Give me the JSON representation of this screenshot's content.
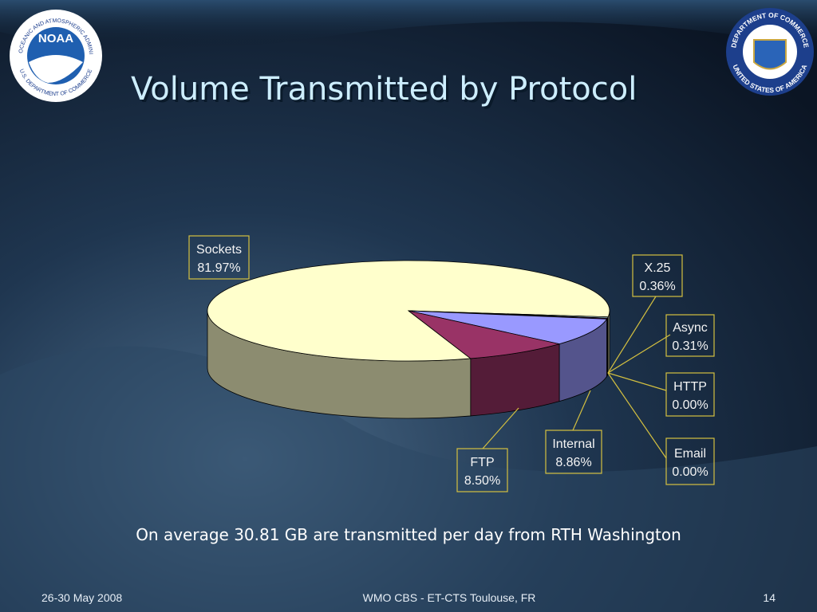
{
  "chart_data": {
    "type": "pie",
    "title": "Volume Transmitted by Protocol",
    "categories": [
      "Sockets",
      "X.25",
      "Async",
      "HTTP",
      "Email",
      "Internal",
      "FTP"
    ],
    "values": [
      81.97,
      0.36,
      0.31,
      0,
      0,
      8.86,
      8.5
    ],
    "value_labels": [
      "81.97%",
      "0.36%",
      "0.31%",
      "0.00%",
      "0.00%",
      "8.86%",
      "8.50%"
    ],
    "colors": [
      "#ffffcc",
      "#ccffff",
      "#660066",
      "#ff8080",
      "#0066cc",
      "#9999ff",
      "#993366"
    ]
  },
  "slide": {
    "caption": "On average 30.81 GB are transmitted per day from RTH Washington",
    "footer_left": "26-30 May 2008",
    "footer_center": "WMO CBS - ET-CTS Toulouse, FR",
    "page_number": 14
  },
  "logos": {
    "noaa": {
      "name": "NOAA",
      "ring_top": "NATIONAL OCEANIC AND ATMOSPHERIC ADMINISTRATION",
      "ring_bottom": "U.S. DEPARTMENT OF COMMERCE"
    },
    "commerce": {
      "ring_top": "DEPARTMENT OF COMMERCE",
      "ring_bottom": "UNITED STATES OF AMERICA"
    }
  }
}
